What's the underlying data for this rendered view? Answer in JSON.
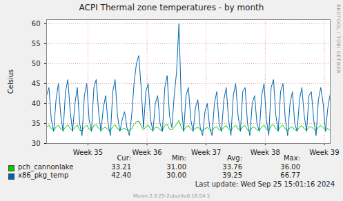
{
  "chart_data": {
    "type": "line",
    "title": "ACPI Thermal zone temperatures - by month",
    "ylabel": "Celsius",
    "x": [
      34.3,
      34.34,
      34.38,
      34.42,
      34.46,
      34.5,
      34.54,
      34.58,
      34.62,
      34.66,
      34.7,
      34.74,
      34.78,
      34.82,
      34.86,
      34.9,
      34.94,
      34.98,
      35.02,
      35.06,
      35.1,
      35.14,
      35.18,
      35.22,
      35.26,
      35.3,
      35.34,
      35.38,
      35.42,
      35.46,
      35.5,
      35.54,
      35.58,
      35.62,
      35.66,
      35.7,
      35.74,
      35.78,
      35.82,
      35.86,
      35.9,
      35.94,
      35.98,
      36.02,
      36.06,
      36.1,
      36.14,
      36.18,
      36.22,
      36.26,
      36.3,
      36.34,
      36.38,
      36.42,
      36.46,
      36.5,
      36.54,
      36.58,
      36.62,
      36.66,
      36.7,
      36.74,
      36.78,
      36.82,
      36.86,
      36.9,
      36.94,
      36.98,
      37.02,
      37.06,
      37.1,
      37.14,
      37.18,
      37.22,
      37.26,
      37.3,
      37.34,
      37.38,
      37.42,
      37.46,
      37.5,
      37.54,
      37.58,
      37.62,
      37.66,
      37.7,
      37.74,
      37.78,
      37.82,
      37.86,
      37.9,
      37.94,
      37.98,
      38.02,
      38.06,
      38.1,
      38.14,
      38.18,
      38.22,
      38.26,
      38.3,
      38.34,
      38.38,
      38.42,
      38.46,
      38.5,
      38.54,
      38.58,
      38.62,
      38.66,
      38.7,
      38.74,
      38.78,
      38.82,
      38.86,
      38.9,
      38.94,
      38.98,
      39.02,
      39.06,
      39.1
    ],
    "series": [
      {
        "name": "pch_cannonlake",
        "color": "#00cc00",
        "stats": [
          "33.21",
          "31.00",
          "33.76",
          "36.00"
        ],
        "values": [
          34.1,
          34.6,
          33.7,
          33.3,
          34.1,
          34.6,
          33.7,
          33.3,
          34.1,
          34.7,
          33.7,
          33.3,
          34.0,
          34.6,
          33.3,
          33.2,
          34.1,
          34.6,
          33.6,
          33.3,
          34.5,
          34.7,
          33.8,
          33.3,
          33.8,
          34.1,
          33.4,
          33.2,
          34.2,
          34.7,
          33.7,
          33.3,
          33.6,
          33.8,
          33.4,
          33.2,
          33.7,
          34.8,
          35.4,
          35.6,
          34.5,
          33.4,
          34.2,
          34.6,
          33.6,
          33.3,
          34.0,
          34.1,
          33.4,
          33.3,
          34.5,
          34.8,
          33.7,
          33.4,
          34.1,
          34.9,
          35.8,
          34.0,
          33.3,
          34.1,
          34.5,
          33.6,
          33.3,
          33.8,
          34.1,
          33.4,
          33.2,
          33.7,
          34.0,
          33.4,
          33.1,
          34.0,
          34.2,
          33.4,
          33.3,
          34.1,
          34.5,
          33.6,
          33.2,
          34.1,
          34.6,
          33.7,
          33.3,
          34.2,
          34.5,
          33.4,
          33.2,
          34.0,
          34.1,
          33.4,
          33.3,
          34.1,
          34.6,
          33.6,
          33.2,
          34.5,
          34.7,
          33.7,
          33.3,
          34.2,
          34.6,
          33.6,
          33.2,
          34.0,
          34.2,
          33.4,
          33.3,
          34.1,
          34.5,
          33.7,
          33.3,
          34.1,
          34.2,
          33.6,
          33.2,
          34.1,
          34.5,
          34.0,
          33.3,
          33.8,
          33.21
        ]
      },
      {
        "name": "x86_pkg_temp",
        "color": "#0066b3",
        "stats": [
          "42.40",
          "30.00",
          "39.25",
          "66.77"
        ],
        "values": [
          42,
          44,
          36,
          33,
          41,
          45,
          37,
          33,
          43,
          46,
          38,
          33,
          40,
          44,
          35,
          32,
          42,
          45,
          36,
          33,
          44,
          46,
          38,
          33,
          39,
          42,
          35,
          32,
          43,
          46,
          37,
          33,
          36,
          38,
          34,
          32,
          37,
          45,
          50,
          52,
          44,
          34,
          43,
          45,
          36,
          33,
          40,
          42,
          35,
          33,
          44,
          47,
          37,
          34,
          42,
          48,
          60,
          40,
          33,
          42,
          44,
          36,
          33,
          39,
          41,
          34,
          32,
          38,
          40,
          34,
          32,
          40,
          43,
          35,
          33,
          41,
          44,
          36,
          32,
          42,
          45,
          37,
          33,
          43,
          44,
          35,
          32,
          40,
          42,
          35,
          33,
          42,
          45,
          36,
          32,
          44,
          46,
          37,
          33,
          43,
          45,
          36,
          32,
          40,
          43,
          35,
          33,
          41,
          44,
          37,
          33,
          42,
          43,
          36,
          32,
          41,
          44,
          40,
          33,
          39,
          42.4
        ]
      }
    ],
    "xlim": [
      34.3,
      39.1
    ],
    "xticks": [
      {
        "value": 35,
        "label": "Week 35"
      },
      {
        "value": 36,
        "label": "Week 36"
      },
      {
        "value": 37,
        "label": "Week 37"
      },
      {
        "value": 38,
        "label": "Week 38"
      },
      {
        "value": 39,
        "label": "Week 39"
      }
    ],
    "ylim": [
      30,
      61
    ],
    "yticks": [
      30,
      35,
      40,
      45,
      50,
      55,
      60
    ],
    "grid": true,
    "legend": "bottom",
    "stats_columns": [
      "Cur:",
      "Min:",
      "Avg:",
      "Max:"
    ],
    "last_update": "Last update: Wed Sep 25 15:01:16 2024",
    "footer": "Munin 2.0.25-2ubuntu0.16.04.3",
    "watermark": "RRDTOOL / TOBI OETIKER"
  }
}
